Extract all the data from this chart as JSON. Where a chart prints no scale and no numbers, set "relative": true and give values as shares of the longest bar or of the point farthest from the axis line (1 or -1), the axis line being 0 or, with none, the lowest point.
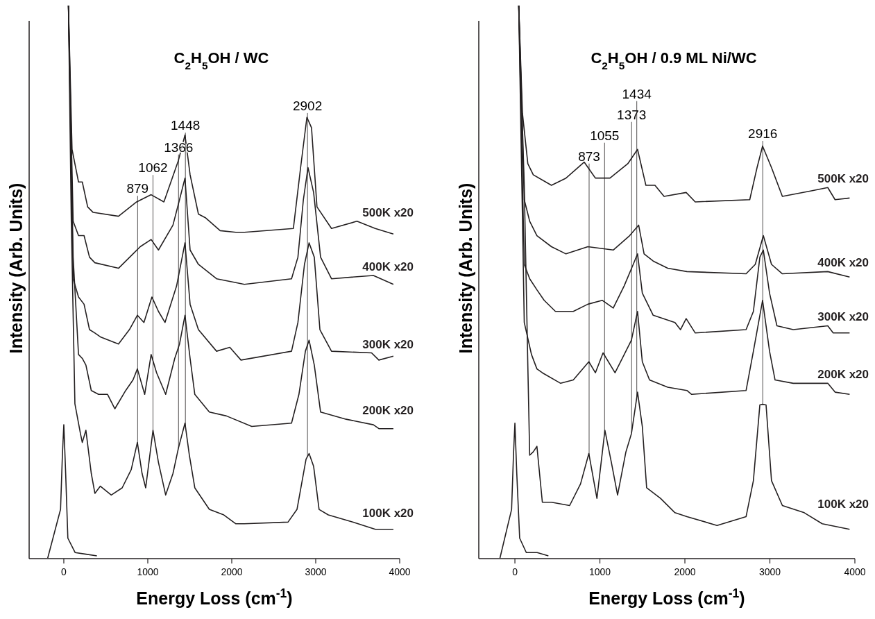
{
  "chart_data": [
    {
      "type": "line",
      "title": "C$_{2}$H$_{5}$OH / WC",
      "xlabel": "Energy Loss (cm$^{-1}$)",
      "ylabel": "Intensity (Arb. Units)",
      "relative": true,
      "xlim": [
        -413,
        4000
      ],
      "xticks": [
        0,
        1000,
        2000,
        3000,
        4000
      ],
      "series": [
        {
          "name": "100K x20",
          "color": "#231f20",
          "x": [
            55,
            89,
            132,
            198,
            220,
            263,
            327,
            370,
            435,
            565,
            695,
            803,
            876,
            932,
            975,
            1062,
            1127,
            1213,
            1300,
            1365,
            1443,
            1495,
            1560,
            1733,
            1906,
            2049,
            2150,
            2670,
            2777,
            2885,
            2921,
            2975,
            3040,
            3150,
            3447,
            3710,
            3925
          ],
          "values": [
            1.0,
            0.61,
            0.28,
            0.226,
            0.21,
            0.232,
            0.154,
            0.118,
            0.131,
            0.115,
            0.128,
            0.161,
            0.21,
            0.154,
            0.128,
            0.232,
            0.174,
            0.115,
            0.154,
            0.2,
            0.245,
            0.187,
            0.128,
            0.089,
            0.079,
            0.063,
            0.063,
            0.066,
            0.089,
            0.18,
            0.19,
            0.167,
            0.089,
            0.079,
            0.066,
            0.053,
            0.053
          ]
        },
        {
          "name": "200K x20",
          "color": "#231f20",
          "x": [
            55,
            111,
            175,
            220,
            263,
            327,
            413,
            521,
            608,
            737,
            824,
            876,
            963,
            1040,
            1105,
            1213,
            1321,
            1378,
            1443,
            1504,
            1560,
            1733,
            1936,
            2238,
            2712,
            2800,
            2877,
            2921,
            2983,
            3058,
            3363,
            3687,
            3752,
            3925
          ],
          "values": [
            1.0,
            0.545,
            0.369,
            0.362,
            0.35,
            0.304,
            0.297,
            0.297,
            0.271,
            0.304,
            0.323,
            0.343,
            0.297,
            0.369,
            0.336,
            0.297,
            0.362,
            0.388,
            0.44,
            0.362,
            0.297,
            0.265,
            0.258,
            0.239,
            0.245,
            0.297,
            0.375,
            0.395,
            0.35,
            0.265,
            0.252,
            0.242,
            0.235,
            0.235
          ]
        },
        {
          "name": "300K x20",
          "color": "#231f20",
          "x": [
            55,
            111,
            175,
            241,
            306,
            370,
            435,
            651,
            781,
            876,
            954,
            1049,
            1127,
            1205,
            1343,
            1443,
            1504,
            1603,
            1819,
            1977,
            2110,
            2712,
            2788,
            2866,
            2921,
            2983,
            3050,
            3188,
            3665,
            3752,
            3925
          ],
          "values": [
            1.0,
            0.506,
            0.473,
            0.46,
            0.414,
            0.408,
            0.401,
            0.388,
            0.414,
            0.44,
            0.427,
            0.473,
            0.447,
            0.427,
            0.493,
            0.571,
            0.46,
            0.414,
            0.375,
            0.382,
            0.359,
            0.375,
            0.427,
            0.532,
            0.571,
            0.545,
            0.414,
            0.375,
            0.372,
            0.359,
            0.366
          ]
        },
        {
          "name": "400K x20",
          "color": "#231f20",
          "x": [
            55,
            111,
            175,
            241,
            306,
            370,
            651,
            824,
            910,
            1040,
            1127,
            1300,
            1378,
            1443,
            1504,
            1603,
            1819,
            2049,
            2150,
            2712,
            2788,
            2853,
            2908,
            2975,
            3058,
            3188,
            3687,
            3925
          ],
          "values": [
            1.0,
            0.61,
            0.584,
            0.584,
            0.545,
            0.535,
            0.525,
            0.551,
            0.564,
            0.577,
            0.558,
            0.603,
            0.649,
            0.688,
            0.558,
            0.532,
            0.506,
            0.499,
            0.496,
            0.506,
            0.545,
            0.649,
            0.707,
            0.662,
            0.545,
            0.506,
            0.512,
            0.496
          ]
        },
        {
          "name": "500K x20",
          "color": "#231f20",
          "x": [
            55,
            98,
            175,
            220,
            284,
            349,
            651,
            867,
            1040,
            1192,
            1365,
            1443,
            1504,
            1603,
            1690,
            1862,
            2049,
            2150,
            2734,
            2820,
            2895,
            2950,
            3015,
            3188,
            3491,
            3709,
            3925
          ],
          "values": [
            1.0,
            0.74,
            0.681,
            0.681,
            0.636,
            0.626,
            0.619,
            0.645,
            0.658,
            0.645,
            0.72,
            0.766,
            0.694,
            0.623,
            0.616,
            0.593,
            0.59,
            0.59,
            0.597,
            0.707,
            0.798,
            0.779,
            0.636,
            0.597,
            0.61,
            0.597,
            0.587
          ]
        },
        {
          "color": "#231f20",
          "x": [
            -192,
            -39,
            -17,
            0,
            22,
            48,
            134,
            264,
            394
          ],
          "values": [
            0.001,
            0.089,
            0.187,
            0.242,
            0.154,
            0.037,
            0.011,
            0.008,
            0.005
          ]
        }
      ],
      "annotations": [
        {
          "text": "879",
          "x": 879,
          "y": 0.207
        },
        {
          "text": "1062",
          "x": 1062,
          "y": 0.232
        },
        {
          "text": "1366",
          "x": 1366,
          "y": 0.2
        },
        {
          "text": "1448",
          "x": 1448,
          "y": 0.239
        },
        {
          "text": "2902",
          "x": 2902,
          "y": 0.185
        }
      ]
    },
    {
      "type": "line",
      "title": "C$_{2}$H$_{5}$OH / 0.9 ML Ni/WC",
      "xlabel": "Energy Loss (cm$^{-1}$)",
      "ylabel": "Intensity (Arb. Units)",
      "relative": true,
      "xlim": [
        -425,
        4000
      ],
      "xticks": [
        0,
        1000,
        2000,
        3000,
        4000
      ],
      "series": [
        {
          "name": "100K x20",
          "color": "#231f20",
          "x": [
            45,
            110,
            152,
            174,
            216,
            259,
            323,
            430,
            644,
            772,
            870,
            965,
            1059,
            1135,
            1208,
            1306,
            1371,
            1443,
            1499,
            1550,
            1713,
            1883,
            2024,
            2378,
            2720,
            2806,
            2882,
            2914,
            2955,
            3019,
            3147,
            3404,
            3616,
            3938
          ],
          "values": [
            1.0,
            0.675,
            0.349,
            0.187,
            0.193,
            0.203,
            0.102,
            0.102,
            0.096,
            0.135,
            0.19,
            0.109,
            0.232,
            0.174,
            0.115,
            0.193,
            0.226,
            0.301,
            0.239,
            0.128,
            0.109,
            0.083,
            0.076,
            0.06,
            0.076,
            0.141,
            0.278,
            0.279,
            0.278,
            0.141,
            0.096,
            0.083,
            0.063,
            0.053
          ]
        },
        {
          "name": "200K x20",
          "color": "#231f20",
          "x": [
            45,
            110,
            195,
            259,
            323,
            538,
            687,
            870,
            947,
            1037,
            1178,
            1371,
            1443,
            1499,
            1584,
            1798,
            2024,
            2079,
            2720,
            2806,
            2914,
            2996,
            3061,
            3275,
            3681,
            3767,
            3938
          ],
          "values": [
            1.0,
            0.427,
            0.369,
            0.343,
            0.336,
            0.317,
            0.323,
            0.356,
            0.336,
            0.372,
            0.336,
            0.395,
            0.447,
            0.356,
            0.323,
            0.31,
            0.304,
            0.297,
            0.304,
            0.375,
            0.467,
            0.375,
            0.323,
            0.317,
            0.317,
            0.301,
            0.297
          ]
        },
        {
          "name": "300K x20",
          "color": "#231f20",
          "x": [
            45,
            110,
            174,
            259,
            344,
            477,
            687,
            858,
            1029,
            1157,
            1285,
            1392,
            1443,
            1499,
            1627,
            1883,
            1948,
            2015,
            2122,
            2720,
            2806,
            2882,
            2923,
            2996,
            3083,
            3275,
            3681,
            3745,
            3938
          ],
          "values": [
            1.0,
            0.532,
            0.506,
            0.486,
            0.467,
            0.447,
            0.447,
            0.46,
            0.467,
            0.453,
            0.493,
            0.532,
            0.551,
            0.48,
            0.44,
            0.427,
            0.414,
            0.434,
            0.408,
            0.414,
            0.447,
            0.545,
            0.558,
            0.48,
            0.421,
            0.414,
            0.421,
            0.408,
            0.408
          ]
        },
        {
          "name": "400K x20",
          "color": "#231f20",
          "x": [
            45,
            110,
            174,
            259,
            430,
            601,
            858,
            1157,
            1350,
            1456,
            1520,
            1627,
            1798,
            2024,
            2720,
            2828,
            2923,
            3019,
            3147,
            3681,
            3938
          ],
          "values": [
            1.0,
            0.649,
            0.61,
            0.584,
            0.564,
            0.551,
            0.564,
            0.558,
            0.584,
            0.603,
            0.551,
            0.538,
            0.525,
            0.519,
            0.515,
            0.532,
            0.584,
            0.532,
            0.515,
            0.519,
            0.509
          ]
        },
        {
          "name": "500K x20",
          "color": "#231f20",
          "x": [
            45,
            89,
            152,
            216,
            430,
            601,
            815,
            947,
            1118,
            1328,
            1443,
            1541,
            1648,
            1755,
            2015,
            2122,
            2763,
            2849,
            2914,
            3019,
            3147,
            3489,
            3681,
            3767,
            3938
          ],
          "values": [
            1.0,
            0.805,
            0.714,
            0.694,
            0.675,
            0.688,
            0.717,
            0.688,
            0.688,
            0.714,
            0.74,
            0.675,
            0.675,
            0.655,
            0.662,
            0.645,
            0.649,
            0.707,
            0.746,
            0.707,
            0.655,
            0.665,
            0.671,
            0.649,
            0.652
          ]
        },
        {
          "color": "#231f20",
          "x": [
            -176,
            -39,
            -17,
            0,
            22,
            56,
            134,
            262,
            394
          ],
          "values": [
            0.001,
            0.089,
            0.187,
            0.245,
            0.154,
            0.037,
            0.011,
            0.011,
            0.005
          ]
        }
      ],
      "annotations": [
        {
          "text": "873",
          "x": 873,
          "y": 0.187
        },
        {
          "text": "1055",
          "x": 1055,
          "y": 0.227
        },
        {
          "text": "1373",
          "x": 1373,
          "y": 0.228
        },
        {
          "text": "1434",
          "x": 1434,
          "y": 0.292
        },
        {
          "text": "2916",
          "x": 2916,
          "y": 0.279
        }
      ]
    }
  ]
}
